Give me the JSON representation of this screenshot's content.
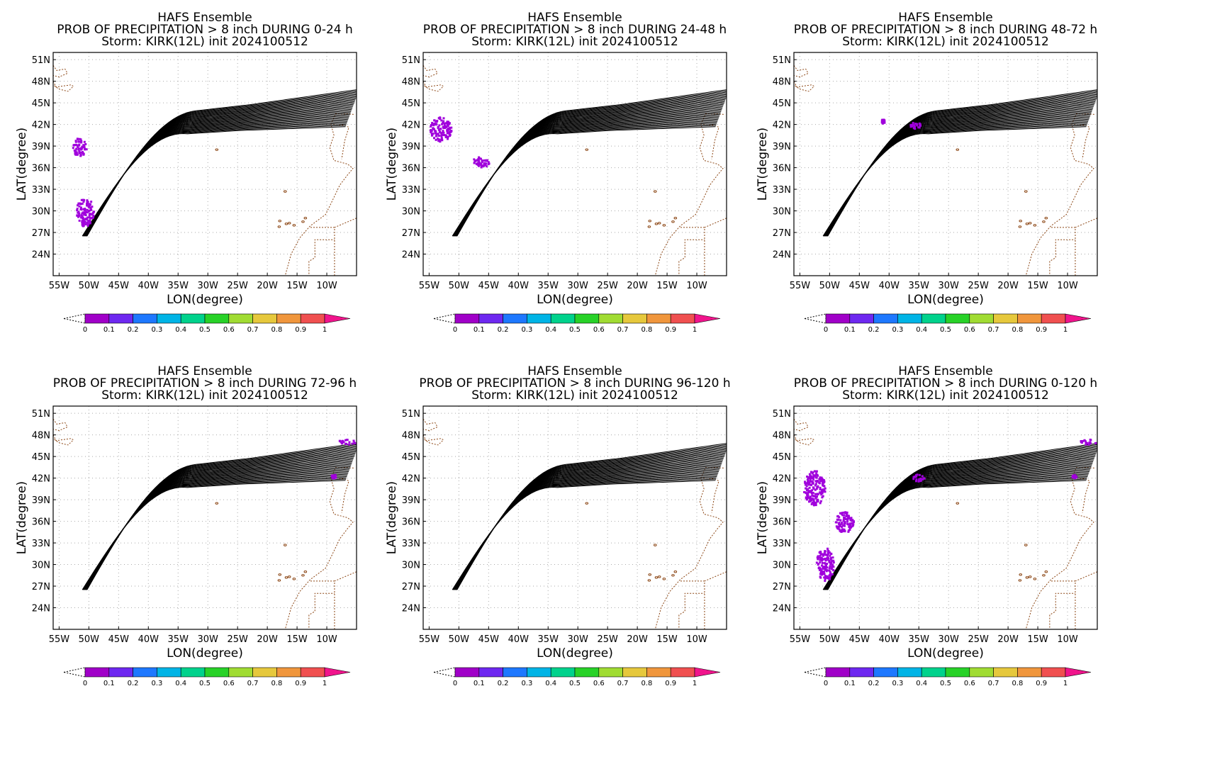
{
  "colorbar": {
    "labels": [
      "0",
      "0.1",
      "0.2",
      "0.3",
      "0.4",
      "0.5",
      "0.6",
      "0.7",
      "0.8",
      "0.9",
      "1"
    ],
    "colors": [
      "#a000c8",
      "#6e28f0",
      "#1e78ff",
      "#00b4e6",
      "#00d28c",
      "#28d228",
      "#a0dc32",
      "#e6c83c",
      "#f0963c",
      "#f05050",
      "#f0148c"
    ]
  },
  "map": {
    "coastline_color": "#8b4513",
    "track_color": "#000000",
    "precip_color": "#a000dc",
    "grid": "dotted"
  },
  "chart_data": [
    {
      "type": "map",
      "title": "HAFS Ensemble",
      "subtitle": "PROB OF PRECIPITATION > 8 inch DURING  0-24 h",
      "storm_line": "Storm: KIRK(12L) init 2024100512",
      "xlabel": "LON(degree)",
      "ylabel": "LAT(degree)",
      "xlim": [
        -56,
        -5
      ],
      "ylim": [
        21,
        52
      ],
      "xticks": [
        "55W",
        "50W",
        "45W",
        "40W",
        "35W",
        "30W",
        "25W",
        "20W",
        "15W",
        "10W"
      ],
      "yticks": [
        "24N",
        "27N",
        "30N",
        "33N",
        "36N",
        "39N",
        "42N",
        "45N",
        "48N",
        "51N"
      ],
      "precip_blobs": [
        {
          "lon": -51.5,
          "lat": 38.8,
          "rlon": 1.2,
          "rlat": 1.3,
          "prob": 0.05
        },
        {
          "lon": -50.6,
          "lat": 29.8,
          "rlon": 1.5,
          "rlat": 2.0,
          "prob": 0.05
        }
      ]
    },
    {
      "type": "map",
      "title": "HAFS Ensemble",
      "subtitle": "PROB OF PRECIPITATION > 8 inch DURING 24-48 h",
      "storm_line": "Storm: KIRK(12L) init 2024100512",
      "xlabel": "LON(degree)",
      "ylabel": "LAT(degree)",
      "xlim": [
        -56,
        -5
      ],
      "ylim": [
        21,
        52
      ],
      "xticks": [
        "55W",
        "50W",
        "45W",
        "40W",
        "35W",
        "30W",
        "25W",
        "20W",
        "15W",
        "10W"
      ],
      "yticks": [
        "24N",
        "27N",
        "30N",
        "33N",
        "36N",
        "39N",
        "42N",
        "45N",
        "48N",
        "51N"
      ],
      "precip_blobs": [
        {
          "lon": -53.0,
          "lat": 41.3,
          "rlon": 1.8,
          "rlat": 1.7,
          "prob": 0.05
        },
        {
          "lon": -46.2,
          "lat": 36.8,
          "rlon": 1.5,
          "rlat": 0.8,
          "prob": 0.05
        }
      ]
    },
    {
      "type": "map",
      "title": "HAFS Ensemble",
      "subtitle": "PROB OF PRECIPITATION > 8 inch DURING 48-72 h",
      "storm_line": "Storm: KIRK(12L) init 2024100512",
      "xlabel": "LON(degree)",
      "ylabel": "LAT(degree)",
      "xlim": [
        -56,
        -5
      ],
      "ylim": [
        21,
        52
      ],
      "xticks": [
        "55W",
        "50W",
        "45W",
        "40W",
        "35W",
        "30W",
        "25W",
        "20W",
        "15W",
        "10W"
      ],
      "yticks": [
        "24N",
        "27N",
        "30N",
        "33N",
        "36N",
        "39N",
        "42N",
        "45N",
        "48N",
        "51N"
      ],
      "precip_blobs": [
        {
          "lon": -35.5,
          "lat": 41.8,
          "rlon": 0.9,
          "rlat": 0.5,
          "prob": 0.05
        },
        {
          "lon": -41.0,
          "lat": 42.4,
          "rlon": 0.3,
          "rlat": 0.3,
          "prob": 0.05
        }
      ]
    },
    {
      "type": "map",
      "title": "HAFS Ensemble",
      "subtitle": "PROB OF PRECIPITATION > 8 inch DURING 72-96 h",
      "storm_line": "Storm: KIRK(12L) init 2024100512",
      "xlabel": "LON(degree)",
      "ylabel": "LAT(degree)",
      "xlim": [
        -56,
        -5
      ],
      "ylim": [
        21,
        52
      ],
      "xticks": [
        "55W",
        "50W",
        "45W",
        "40W",
        "35W",
        "30W",
        "25W",
        "20W",
        "15W",
        "10W"
      ],
      "yticks": [
        "24N",
        "27N",
        "30N",
        "33N",
        "36N",
        "39N",
        "42N",
        "45N",
        "48N",
        "51N"
      ],
      "precip_blobs": [
        {
          "lon": -6.5,
          "lat": 47.0,
          "rlon": 1.5,
          "rlat": 0.35,
          "prob": 0.05
        },
        {
          "lon": -8.8,
          "lat": 42.2,
          "rlon": 0.4,
          "rlat": 0.3,
          "prob": 0.05
        }
      ]
    },
    {
      "type": "map",
      "title": "HAFS Ensemble",
      "subtitle": "PROB OF PRECIPITATION > 8 inch DURING 96-120 h",
      "storm_line": "Storm: KIRK(12L) init 2024100512",
      "xlabel": "LON(degree)",
      "ylabel": "LAT(degree)",
      "xlim": [
        -56,
        -5
      ],
      "ylim": [
        21,
        52
      ],
      "xticks": [
        "55W",
        "50W",
        "45W",
        "40W",
        "35W",
        "30W",
        "25W",
        "20W",
        "15W",
        "10W"
      ],
      "yticks": [
        "24N",
        "27N",
        "30N",
        "33N",
        "36N",
        "39N",
        "42N",
        "45N",
        "48N",
        "51N"
      ],
      "precip_blobs": []
    },
    {
      "type": "map",
      "title": "HAFS Ensemble",
      "subtitle": "PROB OF PRECIPITATION > 8 inch DURING 0-120 h",
      "storm_line": "Storm: KIRK(12L) init 2024100512",
      "xlabel": "LON(degree)",
      "ylabel": "LAT(degree)",
      "xlim": [
        -56,
        -5
      ],
      "ylim": [
        21,
        52
      ],
      "xticks": [
        "55W",
        "50W",
        "45W",
        "40W",
        "35W",
        "30W",
        "25W",
        "20W",
        "15W",
        "10W"
      ],
      "yticks": [
        "24N",
        "27N",
        "30N",
        "33N",
        "36N",
        "39N",
        "42N",
        "45N",
        "48N",
        "51N"
      ],
      "precip_blobs": [
        {
          "lon": -52.5,
          "lat": 40.5,
          "rlon": 1.8,
          "rlat": 2.5,
          "prob": 0.05
        },
        {
          "lon": -50.7,
          "lat": 30.0,
          "rlon": 1.5,
          "rlat": 2.3,
          "prob": 0.05
        },
        {
          "lon": -47.5,
          "lat": 35.8,
          "rlon": 1.6,
          "rlat": 1.5,
          "prob": 0.05
        },
        {
          "lon": -35.0,
          "lat": 42.0,
          "rlon": 1.0,
          "rlat": 0.5,
          "prob": 0.05
        },
        {
          "lon": -6.5,
          "lat": 47.0,
          "rlon": 1.5,
          "rlat": 0.35,
          "prob": 0.05
        },
        {
          "lon": -8.8,
          "lat": 42.2,
          "rlon": 0.4,
          "rlat": 0.3,
          "prob": 0.05
        }
      ]
    }
  ]
}
